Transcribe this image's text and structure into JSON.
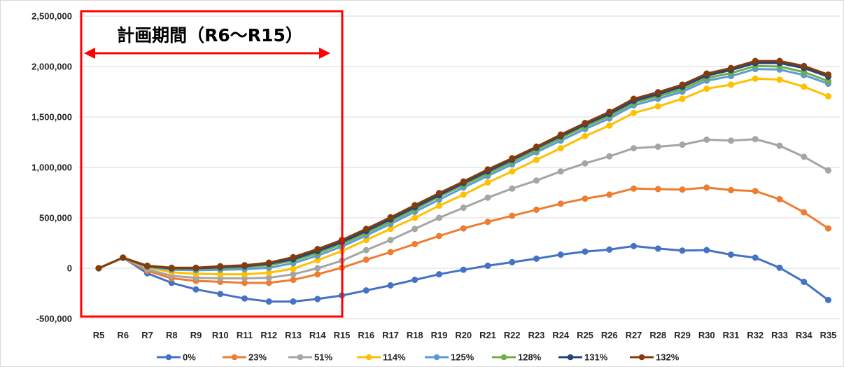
{
  "chart_data": {
    "type": "line",
    "title": "",
    "xlabel": "",
    "ylabel": "",
    "categories": [
      "R5",
      "R6",
      "R7",
      "R8",
      "R9",
      "R10",
      "R11",
      "R12",
      "R13",
      "R14",
      "R15",
      "R16",
      "R17",
      "R18",
      "R19",
      "R20",
      "R21",
      "R22",
      "R23",
      "R24",
      "R25",
      "R26",
      "R27",
      "R28",
      "R29",
      "R30",
      "R31",
      "R32",
      "R33",
      "R34",
      "R35"
    ],
    "ylim": [
      -500000,
      2500000
    ],
    "yticks": [
      -500000,
      0,
      500000,
      1000000,
      1500000,
      2000000,
      2500000
    ],
    "ytick_labels": [
      "-500,000",
      "0",
      "500,000",
      "1,000,000",
      "1,500,000",
      "2,000,000",
      "2,500,000"
    ],
    "grid": true,
    "legend_position": "bottom",
    "series": [
      {
        "name": "0%",
        "color": "#4472C4",
        "values": [
          0,
          105000,
          -50000,
          -145000,
          -210000,
          -255000,
          -300000,
          -330000,
          -330000,
          -305000,
          -270000,
          -220000,
          -170000,
          -115000,
          -60000,
          -15000,
          25000,
          60000,
          95000,
          135000,
          165000,
          185000,
          220000,
          195000,
          175000,
          180000,
          135000,
          105000,
          5000,
          -135000,
          -315000
        ]
      },
      {
        "name": "23%",
        "color": "#ED7D31",
        "values": [
          0,
          105000,
          -25000,
          -100000,
          -125000,
          -135000,
          -145000,
          -145000,
          -115000,
          -60000,
          5000,
          85000,
          160000,
          240000,
          320000,
          395000,
          460000,
          520000,
          580000,
          640000,
          690000,
          730000,
          790000,
          785000,
          780000,
          800000,
          775000,
          765000,
          685000,
          555000,
          395000
        ]
      },
      {
        "name": "51%",
        "color": "#A5A5A5",
        "values": [
          0,
          105000,
          -10000,
          -75000,
          -95000,
          -100000,
          -100000,
          -95000,
          -60000,
          0,
          75000,
          180000,
          280000,
          390000,
          500000,
          600000,
          700000,
          790000,
          870000,
          960000,
          1040000,
          1110000,
          1190000,
          1205000,
          1225000,
          1275000,
          1265000,
          1280000,
          1215000,
          1105000,
          970000
        ]
      },
      {
        "name": "114%",
        "color": "#FFC000",
        "values": [
          0,
          105000,
          10000,
          -40000,
          -55000,
          -60000,
          -60000,
          -45000,
          -5000,
          80000,
          170000,
          280000,
          390000,
          500000,
          620000,
          730000,
          850000,
          960000,
          1075000,
          1190000,
          1310000,
          1415000,
          1540000,
          1605000,
          1680000,
          1780000,
          1820000,
          1880000,
          1870000,
          1800000,
          1705000
        ]
      },
      {
        "name": "125%",
        "color": "#5B9BD5",
        "values": [
          0,
          105000,
          15000,
          -15000,
          -20000,
          -15000,
          -10000,
          5000,
          50000,
          125000,
          215000,
          325000,
          440000,
          560000,
          680000,
          800000,
          915000,
          1030000,
          1150000,
          1265000,
          1380000,
          1485000,
          1615000,
          1680000,
          1750000,
          1860000,
          1905000,
          1975000,
          1970000,
          1915000,
          1830000
        ]
      },
      {
        "name": "128%",
        "color": "#70AD47",
        "values": [
          0,
          105000,
          20000,
          -5000,
          -5000,
          0,
          10000,
          30000,
          75000,
          150000,
          240000,
          350000,
          465000,
          585000,
          710000,
          825000,
          940000,
          1055000,
          1175000,
          1290000,
          1405000,
          1510000,
          1640000,
          1705000,
          1775000,
          1885000,
          1935000,
          2005000,
          2000000,
          1945000,
          1855000
        ]
      },
      {
        "name": "131%",
        "color": "#264478",
        "values": [
          0,
          105000,
          20000,
          0,
          0,
          10000,
          20000,
          45000,
          90000,
          170000,
          260000,
          370000,
          485000,
          605000,
          725000,
          845000,
          960000,
          1075000,
          1195000,
          1310000,
          1425000,
          1530000,
          1660000,
          1725000,
          1800000,
          1910000,
          1965000,
          2035000,
          2035000,
          1985000,
          1900000
        ]
      },
      {
        "name": "132%",
        "color": "#843C0C",
        "values": [
          0,
          105000,
          25000,
          5000,
          5000,
          20000,
          30000,
          55000,
          110000,
          190000,
          280000,
          390000,
          505000,
          625000,
          745000,
          860000,
          980000,
          1090000,
          1205000,
          1325000,
          1440000,
          1550000,
          1680000,
          1745000,
          1820000,
          1930000,
          1985000,
          2055000,
          2055000,
          2005000,
          1920000
        ]
      }
    ]
  },
  "annotation": {
    "label": "計画期間（R6～R15）",
    "box_color": "#FF0000",
    "arrow_color": "#FF0000"
  }
}
